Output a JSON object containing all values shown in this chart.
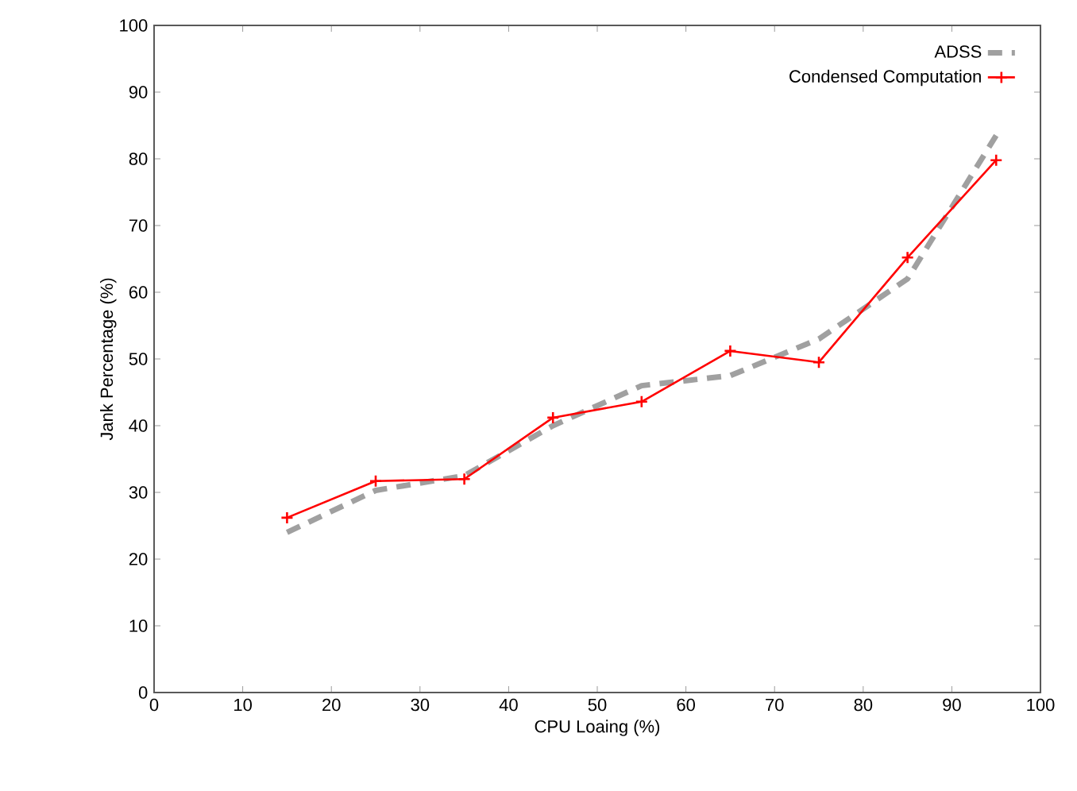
{
  "chart_data": {
    "type": "line",
    "xlabel": "CPU Loaing (%)",
    "ylabel": "Jank Percentage (%)",
    "x": [
      15,
      25,
      35,
      45,
      55,
      65,
      75,
      85,
      95
    ],
    "series": [
      {
        "name": "ADSS",
        "color": "#a0a0a0",
        "line_style": "dashed",
        "marker": "none",
        "values": [
          24,
          30.3,
          32.5,
          40,
          46,
          47.5,
          53,
          62,
          83.5
        ]
      },
      {
        "name": "Condensed Computation",
        "color": "#ff0000",
        "line_style": "solid",
        "marker": "cross",
        "values": [
          26.2,
          31.7,
          32,
          41.2,
          43.6,
          51.2,
          49.5,
          65.2,
          79.8
        ]
      }
    ],
    "xlim": [
      0,
      100
    ],
    "ylim": [
      0,
      100
    ],
    "xticks": [
      0,
      10,
      20,
      30,
      40,
      50,
      60,
      70,
      80,
      90,
      100
    ],
    "yticks": [
      0,
      10,
      20,
      30,
      40,
      50,
      60,
      70,
      80,
      90,
      100
    ],
    "grid": false,
    "legend": "top right"
  }
}
